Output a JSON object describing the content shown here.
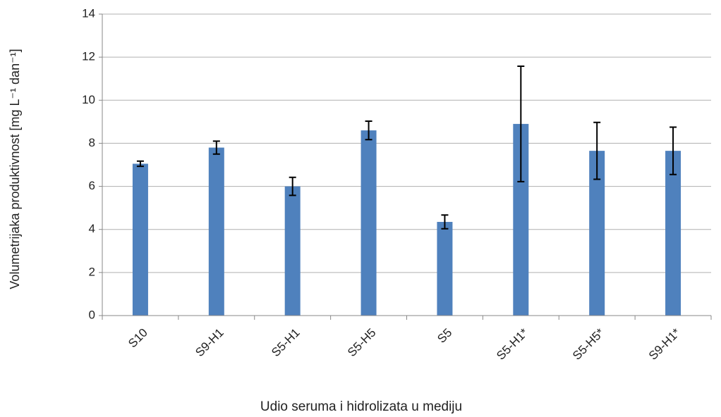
{
  "chart_data": {
    "type": "bar",
    "x_label": "Udio seruma i hidrolizata u mediju",
    "y_label": "Volumetrijaka produktivnost [mg L⁻¹ dan⁻¹]",
    "categories": [
      "S10",
      "S9-H1",
      "S5-H1",
      "S5-H5",
      "S5",
      "S5-H1*",
      "S5-H5*",
      "S9-H1*"
    ],
    "values": [
      7.05,
      7.8,
      6.0,
      8.6,
      4.35,
      8.9,
      7.65,
      7.65
    ],
    "errors": [
      0.12,
      0.3,
      0.42,
      0.43,
      0.32,
      2.68,
      1.32,
      1.1
    ],
    "color": "#4f81bd",
    "ylim": [
      0,
      14
    ],
    "yticks": [
      0,
      2,
      4,
      6,
      8,
      10,
      12,
      14
    ],
    "grid": true
  }
}
